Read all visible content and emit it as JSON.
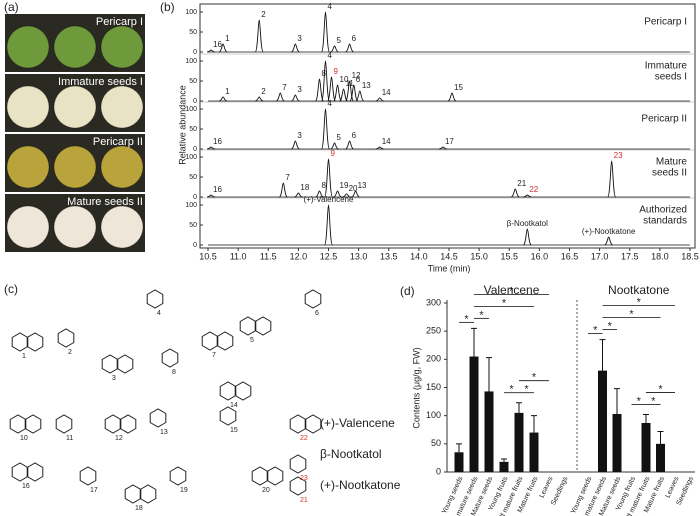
{
  "panel_a": {
    "tag": "(a)",
    "photos": [
      {
        "label": "Pericarp I",
        "color": "#6f9a3c"
      },
      {
        "label": "Immature seeds I",
        "color": "#e7e3c4"
      },
      {
        "label": "Pericarp II",
        "color": "#b9a43c"
      },
      {
        "label": "Mature seeds II",
        "color": "#efe6da"
      }
    ]
  },
  "panel_b": {
    "tag": "(b)",
    "type": "chromatogram",
    "y_label": "Relative abundance",
    "x_label": "Time (min)",
    "xlim": [
      10.5,
      18.5
    ],
    "xticks": [
      10.5,
      {
        "value": 11,
        "label": "11.0"
      },
      11.5,
      {
        "value": 12,
        "label": "12.0"
      },
      12.5,
      {
        "value": 13,
        "label": "13.0"
      },
      13.5,
      {
        "value": 14,
        "label": "14.0"
      },
      14.5,
      {
        "value": 15,
        "label": "15.0"
      },
      15.5,
      {
        "value": 16,
        "label": "16.0"
      },
      16.5,
      {
        "value": 17,
        "label": "17.0"
      },
      17.5,
      {
        "value": 18,
        "label": "18.0"
      },
      18.5
    ],
    "ylim": [
      0,
      100
    ],
    "yticks": [
      0,
      50,
      100
    ],
    "line_color": "#111111",
    "highlight_color": "#d0302a",
    "traces": [
      {
        "label_lines": [
          "Pericarp I"
        ],
        "peaks": [
          {
            "label": "16",
            "time": 10.55,
            "height": 5
          },
          {
            "label": "1",
            "time": 10.75,
            "height": 20
          },
          {
            "label": "2",
            "time": 11.35,
            "height": 80
          },
          {
            "label": "3",
            "time": 11.95,
            "height": 20
          },
          {
            "label": "4",
            "time": 12.45,
            "height": 100
          },
          {
            "label": "5",
            "time": 12.6,
            "height": 15
          },
          {
            "label": "6",
            "time": 12.85,
            "height": 20
          }
        ]
      },
      {
        "label_lines": [
          "Immature",
          "seeds I"
        ],
        "peaks": [
          {
            "label": "1",
            "time": 10.75,
            "height": 10
          },
          {
            "label": "2",
            "time": 11.35,
            "height": 10
          },
          {
            "label": "7",
            "time": 11.7,
            "height": 20
          },
          {
            "label": "3",
            "time": 11.95,
            "height": 15
          },
          {
            "label": "8",
            "time": 12.35,
            "height": 55
          },
          {
            "label": "4",
            "time": 12.45,
            "height": 100
          },
          {
            "label": "9",
            "time": 12.55,
            "height": 60,
            "highlight": true
          },
          {
            "label": "10",
            "time": 12.65,
            "height": 40
          },
          {
            "label": "11",
            "time": 12.75,
            "height": 30
          },
          {
            "label": "12",
            "time": 12.85,
            "height": 50
          },
          {
            "label": "6",
            "time": 12.92,
            "height": 40
          },
          {
            "label": "13",
            "time": 13.02,
            "height": 25
          },
          {
            "label": "14",
            "time": 13.35,
            "height": 8
          },
          {
            "label": "15",
            "time": 14.55,
            "height": 20
          }
        ]
      },
      {
        "label_lines": [
          "Pericarp II"
        ],
        "peaks": [
          {
            "label": "16",
            "time": 10.55,
            "height": 5
          },
          {
            "label": "3",
            "time": 11.95,
            "height": 20
          },
          {
            "label": "4",
            "time": 12.45,
            "height": 100
          },
          {
            "label": "5",
            "time": 12.6,
            "height": 15
          },
          {
            "label": "6",
            "time": 12.85,
            "height": 20
          },
          {
            "label": "14",
            "time": 13.35,
            "height": 5
          },
          {
            "label": "17",
            "time": 14.4,
            "height": 5
          }
        ]
      },
      {
        "label_lines": [
          "Mature",
          "seeds II"
        ],
        "peaks": [
          {
            "label": "16",
            "time": 10.55,
            "height": 5
          },
          {
            "label": "7",
            "time": 11.75,
            "height": 35
          },
          {
            "label": "18",
            "time": 12.0,
            "height": 10
          },
          {
            "label": "8",
            "time": 12.35,
            "height": 15
          },
          {
            "label": "9",
            "time": 12.5,
            "height": 95,
            "highlight": true
          },
          {
            "label": "19",
            "time": 12.65,
            "height": 15
          },
          {
            "label": "20",
            "time": 12.8,
            "height": 8
          },
          {
            "label": "13",
            "time": 12.95,
            "height": 15
          },
          {
            "label": "21",
            "time": 15.6,
            "height": 20
          },
          {
            "label": "22",
            "time": 15.8,
            "height": 5,
            "highlight": true
          },
          {
            "label": "23",
            "time": 17.2,
            "height": 90,
            "highlight": true
          }
        ]
      },
      {
        "label_lines": [
          "Authorized",
          "standards"
        ],
        "peaks": [
          {
            "label": "(+)-Valencene",
            "time": 12.5,
            "height": 100
          },
          {
            "label": "β-Nootkatol",
            "time": 15.8,
            "height": 40
          },
          {
            "label": "(+)-Nootkatone",
            "time": 17.15,
            "height": 20
          }
        ]
      }
    ]
  },
  "panel_c": {
    "tag": "(c)",
    "compounds": [
      "1",
      "2",
      "3",
      "4",
      "5",
      "6",
      "7",
      "8",
      "10",
      "11",
      "12",
      "13",
      "14",
      "15",
      "16",
      "17",
      "18",
      "19",
      "20",
      "21",
      "22",
      "23"
    ],
    "named": [
      "(+)-Valencene",
      "β-Nootkatol",
      "(+)-Nootkatone"
    ],
    "highlight_color": "#d0302a"
  },
  "panel_d": {
    "tag": "(d)",
    "type": "bar",
    "y_label": "Contents (μg/g, FW)",
    "ylim": [
      0,
      300
    ],
    "yticks": [
      0,
      50,
      100,
      150,
      200,
      250,
      300
    ],
    "categories": [
      "Young seeds",
      "Half mature seeds",
      "Mature seeds",
      "Young fruits",
      "Half mature fruits",
      "Mature fruits",
      "Leaves",
      "Seedlings"
    ],
    "color": "#111111",
    "groups": [
      {
        "name": "Valencene",
        "values": [
          35,
          205,
          143,
          18,
          105,
          70,
          0,
          0
        ],
        "errors": [
          15,
          50,
          60,
          5,
          18,
          30,
          0,
          0
        ],
        "significance": [
          {
            "from": 0,
            "to": 1,
            "label": "*"
          },
          {
            "from": 1,
            "to": 2,
            "label": "*"
          },
          {
            "from": 1,
            "to": 5,
            "label": "*"
          },
          {
            "from": 1,
            "to": 6,
            "label": "*"
          },
          {
            "from": 3,
            "to": 4,
            "label": "*"
          },
          {
            "from": 4,
            "to": 5,
            "label": "*"
          },
          {
            "from": 4,
            "to": 6,
            "label": "*"
          }
        ]
      },
      {
        "name": "Nootkatone",
        "values": [
          0,
          180,
          103,
          0,
          87,
          50,
          0,
          0
        ],
        "errors": [
          0,
          55,
          45,
          0,
          15,
          22,
          0,
          0
        ],
        "significance": [
          {
            "from": 0,
            "to": 1,
            "label": "*"
          },
          {
            "from": 1,
            "to": 2,
            "label": "*"
          },
          {
            "from": 1,
            "to": 5,
            "label": "*"
          },
          {
            "from": 1,
            "to": 6,
            "label": "*"
          },
          {
            "from": 3,
            "to": 4,
            "label": "*"
          },
          {
            "from": 4,
            "to": 5,
            "label": "*"
          },
          {
            "from": 4,
            "to": 6,
            "label": "*"
          }
        ]
      }
    ]
  }
}
